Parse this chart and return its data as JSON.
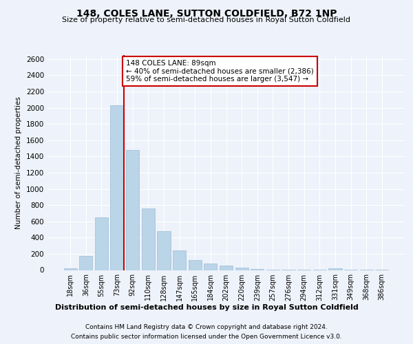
{
  "title": "148, COLES LANE, SUTTON COLDFIELD, B72 1NP",
  "subtitle": "Size of property relative to semi-detached houses in Royal Sutton Coldfield",
  "xlabel_dist": "Distribution of semi-detached houses by size in Royal Sutton Coldfield",
  "ylabel": "Number of semi-detached properties",
  "footnote1": "Contains HM Land Registry data © Crown copyright and database right 2024.",
  "footnote2": "Contains public sector information licensed under the Open Government Licence v3.0.",
  "annotation_line1": "148 COLES LANE: 89sqm",
  "annotation_line2": "← 40% of semi-detached houses are smaller (2,386)",
  "annotation_line3": "59% of semi-detached houses are larger (3,547) →",
  "bar_color": "#bad4e8",
  "bar_edge_color": "#9bbdd6",
  "vline_color": "#cc0000",
  "annotation_box_edge_color": "#cc0000",
  "background_color": "#eef2fa",
  "grid_color": "#ffffff",
  "categories": [
    "18sqm",
    "36sqm",
    "55sqm",
    "73sqm",
    "92sqm",
    "110sqm",
    "128sqm",
    "147sqm",
    "165sqm",
    "184sqm",
    "202sqm",
    "220sqm",
    "239sqm",
    "257sqm",
    "276sqm",
    "294sqm",
    "312sqm",
    "331sqm",
    "349sqm",
    "368sqm",
    "386sqm"
  ],
  "values": [
    20,
    175,
    650,
    2030,
    1480,
    760,
    480,
    240,
    125,
    80,
    55,
    30,
    10,
    8,
    5,
    3,
    2,
    25,
    2,
    1,
    1
  ],
  "ylim": [
    0,
    2650
  ],
  "yticks": [
    0,
    200,
    400,
    600,
    800,
    1000,
    1200,
    1400,
    1600,
    1800,
    2000,
    2200,
    2400,
    2600
  ]
}
